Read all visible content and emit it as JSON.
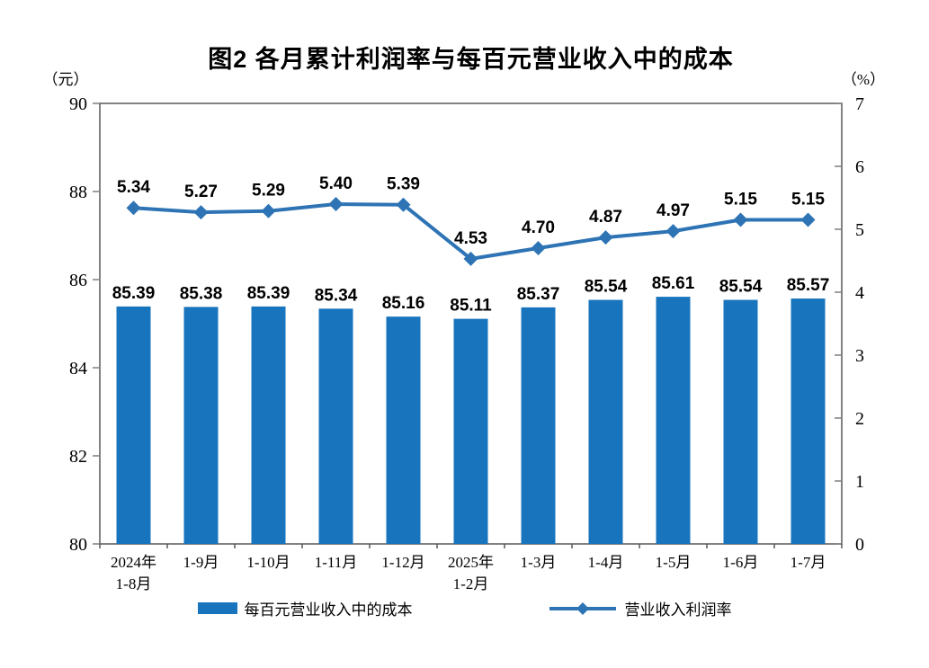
{
  "title": "图2 各月累计利润率与每百元营业收入中的成本",
  "left_axis_unit": "（元）",
  "right_axis_unit": "（%）",
  "legend": {
    "bar_label": "每百元营业收入中的成本",
    "line_label": "营业收入利润率"
  },
  "colors": {
    "bar": "#1874BC",
    "line": "#2E74B5",
    "border": "#595959",
    "tick": "#7F7F7F",
    "text": "#000000"
  },
  "chart_data": {
    "type": "bar",
    "subtype": "bar+line dual axis combo",
    "title": "图2 各月累计利润率与每百元营业收入中的成本",
    "categories": [
      [
        "2024年",
        "1-8月"
      ],
      [
        "1-9月"
      ],
      [
        "1-10月"
      ],
      [
        "1-11月"
      ],
      [
        "1-12月"
      ],
      [
        "2025年",
        "1-2月"
      ],
      [
        "1-3月"
      ],
      [
        "1-4月"
      ],
      [
        "1-5月"
      ],
      [
        "1-6月"
      ],
      [
        "1-7月"
      ]
    ],
    "series": [
      {
        "name": "每百元营业收入中的成本",
        "type": "bar",
        "axis": "left",
        "values": [
          85.39,
          85.38,
          85.39,
          85.34,
          85.16,
          85.11,
          85.37,
          85.54,
          85.61,
          85.54,
          85.57
        ]
      },
      {
        "name": "营业收入利润率",
        "type": "line",
        "axis": "right",
        "marker": "diamond",
        "values": [
          5.34,
          5.27,
          5.29,
          5.4,
          5.39,
          4.53,
          4.7,
          4.87,
          4.97,
          5.15,
          5.15
        ]
      }
    ],
    "left_axis": {
      "unit": "（元）",
      "min": 80,
      "max": 90,
      "tick_step": 2,
      "ticks": [
        90,
        88,
        86,
        84,
        82,
        80
      ]
    },
    "right_axis": {
      "unit": "（%）",
      "min": 0,
      "max": 7,
      "tick_step": 1,
      "ticks": [
        7,
        6,
        5,
        4,
        3,
        2,
        1,
        0
      ]
    },
    "grid": false,
    "data_labels": true,
    "label_decimals": 2,
    "legend_position": "bottom"
  }
}
